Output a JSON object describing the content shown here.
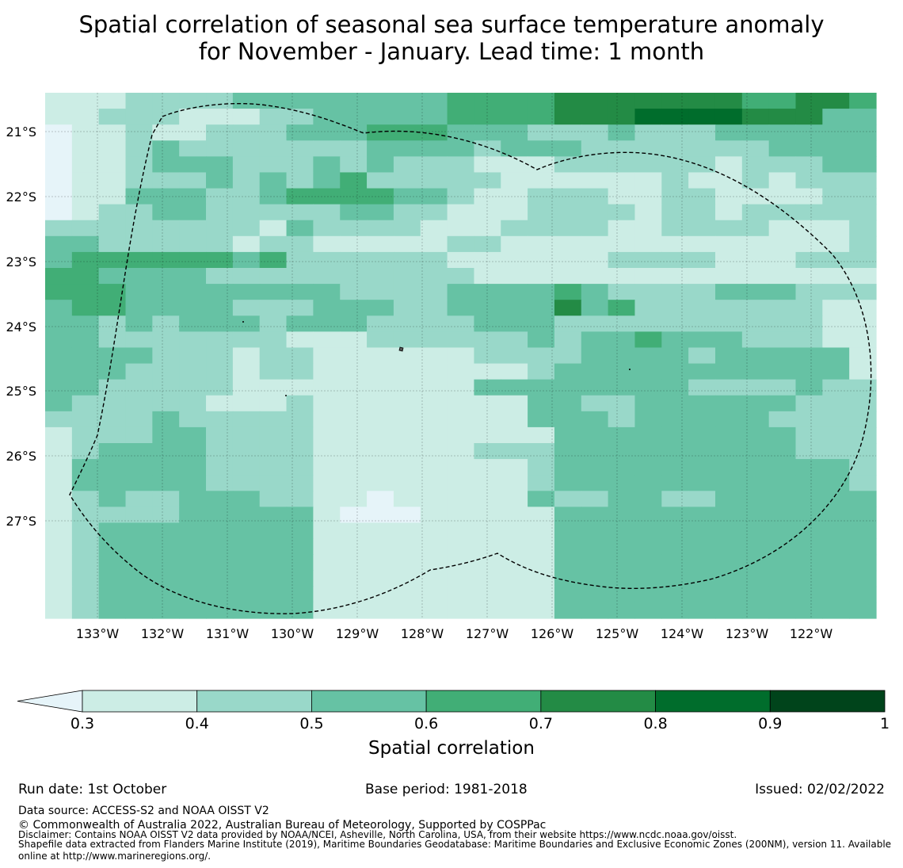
{
  "title": {
    "line1": "Spatial correlation of seasonal sea surface temperature anomaly",
    "line2": "for November - January. Lead time: 1 month"
  },
  "map": {
    "lat_labels": [
      "21°S",
      "22°S",
      "23°S",
      "24°S",
      "25°S",
      "26°S",
      "27°S"
    ],
    "lon_labels": [
      "133°W",
      "132°W",
      "131°W",
      "130°W",
      "129°W",
      "128°W",
      "127°W",
      "126°W",
      "125°W",
      "124°W",
      "123°W",
      "122°W"
    ],
    "palette": [
      "#e6f4f9",
      "#ccede5",
      "#99d8c9",
      "#66c2a4",
      "#41ae76",
      "#238b45",
      "#006d2c",
      "#00441b"
    ],
    "grid": [
      "1112222333333334444555555544554",
      "1122211122333334444555666655533",
      "0112112223334443332223222333333",
      "0112322222223333233322222223333",
      "0112333222323222111222222122233",
      "0112223232342222211111121121222",
      "0113332234444332112221122111122",
      "0122332222233221112222122122222",
      "2222222213222211122221122221112",
      "3322222122111112211111111111112",
      "3444444342222221111112222111222",
      "4433332222222222111111111111111",
      "4443333333322223333432222333222",
      "3443333222333223333534222222211",
      "3323233323332222333222222222211",
      "3322222221112222223233433322211",
      "3333222122111111222233332333331",
      "3332222122111111112333333333331",
      "3322222111111111333333332222322",
      "3222221112111111113322333333222",
      "2222322222111111113332333332222",
      "1222332222111111111333333333222",
      "1233332222111111222333333333222",
      "1333332222111111112333333333332",
      "1333332222111111112333333333332",
      "1232233322110111113223322333333",
      "1222233333100011111333333333333",
      "1233333333111111111333333333333",
      "1233333333111111111333333333333",
      "1233333333111111111333333333333",
      "1233333333111111111333333333333",
      "1233333333111111111333333333333",
      "1233333333111111111333333333333"
    ]
  },
  "colorbar": {
    "ticks": [
      "0.3",
      "0.4",
      "0.5",
      "0.6",
      "0.7",
      "0.8",
      "0.9",
      "1"
    ],
    "colors": [
      "#ccede5",
      "#99d8c9",
      "#66c2a4",
      "#41ae76",
      "#238b45",
      "#006d2c",
      "#00441b"
    ],
    "extend_color": "#e6f4f9",
    "label": "Spatial correlation"
  },
  "footer": {
    "run_date": "Run date: 1st October",
    "base_period": "Base period: 1981-2018",
    "issued": "Issued: 02/02/2022",
    "data_source": "Data source: ACCESS-S2 and NOAA OISST V2",
    "copyright": "© Commonwealth of Australia 2022, Australian Bureau of Meteorology, Supported by COSPPac",
    "disclaimer": "Disclaimer: Contains NOAA OISST V2 data provided by NOAA/NCEI, Asheville, North Carolina, USA, from their website https://www.ncdc.noaa.gov/oisst.",
    "shapefile_line1": "Shapefile data extracted from Flanders Marine Institute (2019), Maritime Boundaries Geodatabase: Maritime Boundaries and Exclusive Economic Zones (200NM), version 11. Available",
    "shapefile_line2": "online at http://www.marineregions.org/."
  }
}
